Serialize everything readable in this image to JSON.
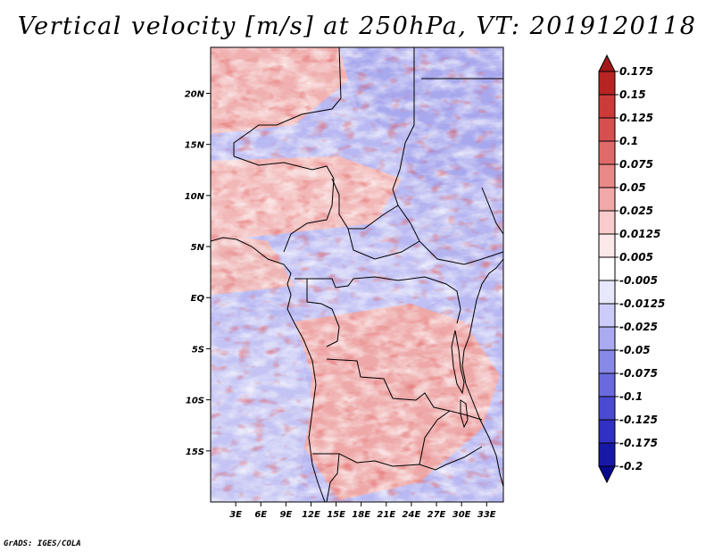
{
  "title": "Vertical velocity [m/s] at 250hPa, VT: 2019120118",
  "credit": "GrADS: IGES/COLA",
  "chart_data": {
    "type": "heatmap",
    "variable": "Vertical velocity",
    "units": "m/s",
    "level": "250hPa",
    "valid_time": "2019120118",
    "x_range": [
      0,
      35
    ],
    "y_range": [
      -20,
      24.5
    ],
    "x_ticks": [
      3,
      6,
      9,
      12,
      15,
      18,
      21,
      24,
      27,
      30,
      33
    ],
    "x_tick_labels": [
      "3E",
      "6E",
      "9E",
      "12E",
      "15E",
      "18E",
      "21E",
      "24E",
      "27E",
      "30E",
      "33E"
    ],
    "y_ticks": [
      20,
      15,
      10,
      5,
      0,
      -5,
      -10,
      -15
    ],
    "y_tick_labels": [
      "20N",
      "15N",
      "10N",
      "5N",
      "EQ",
      "5S",
      "10S",
      "15S"
    ],
    "colorbar": {
      "levels": [
        "0.175",
        "0.15",
        "0.125",
        "0.1",
        "0.075",
        "0.05",
        "0.025",
        "0.0125",
        "0.005",
        "-0.005",
        "-0.0125",
        "-0.025",
        "-0.05",
        "-0.075",
        "-0.1",
        "-0.125",
        "-0.175",
        "-0.2"
      ],
      "colors": [
        "#a01818",
        "#b82424",
        "#cc3a3a",
        "#d65050",
        "#e06a6a",
        "#e98888",
        "#f1a8a8",
        "#f8cccc",
        "#fce8e8",
        "#ffffff",
        "#e8e8fc",
        "#ccccf8",
        "#aaaaf0",
        "#8888e6",
        "#6a6ade",
        "#4a4ad2",
        "#3030c4",
        "#1818a8",
        "#0a0a90"
      ]
    }
  }
}
